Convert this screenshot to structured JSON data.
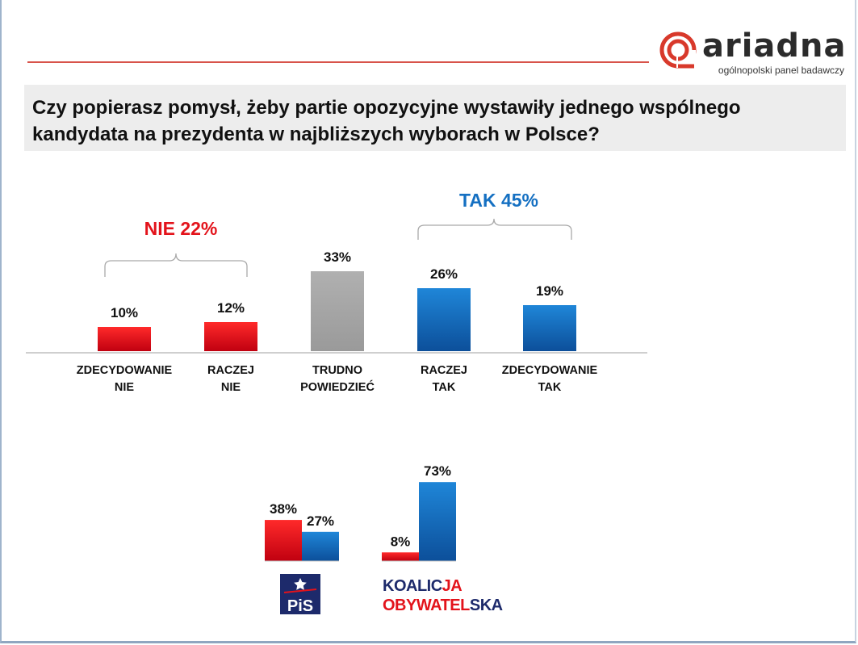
{
  "logo": {
    "brand": "ariadna",
    "tagline": "ogólnopolski panel badawczy"
  },
  "question": "Czy popierasz pomysł, żeby partie opozycyjne wystawiły jednego wspólnego kandydata na prezydenta w najbliższych wyborach w Polsce?",
  "groups": {
    "nie": {
      "label": "NIE 22%",
      "color": "#e3131b"
    },
    "tak": {
      "label": "TAK 45%",
      "color": "#1570c2"
    }
  },
  "parties": {
    "pis": {
      "logo_text": "PiS"
    },
    "ko": {
      "line1_a": "KOALIC",
      "line1_b": "JA",
      "line2_a": "OBYWATEL",
      "line2_b": "SKA"
    }
  },
  "colors": {
    "red": "#e3131b",
    "blue": "#1570c2",
    "gray": "#a6a6a6",
    "navy": "#1d2a6b"
  },
  "chart_data": [
    {
      "type": "bar",
      "categories": [
        [
          "ZDECYDOWANIE",
          "NIE"
        ],
        [
          "RACZEJ",
          "NIE"
        ],
        [
          "TRUDNO",
          "POWIEDZIEĆ"
        ],
        [
          "RACZEJ",
          "TAK"
        ],
        [
          "ZDECYDOWANIE",
          "TAK"
        ]
      ],
      "values": [
        10,
        12,
        33,
        26,
        19
      ],
      "value_labels": [
        "10%",
        "12%",
        "33%",
        "26%",
        "19%"
      ],
      "bar_colors": [
        "red",
        "red",
        "gray",
        "blue",
        "blue"
      ],
      "unit": "%"
    },
    {
      "type": "bar",
      "categories": [
        "PiS",
        "KOALICJA OBYWATELSKA"
      ],
      "series": [
        {
          "color": "red",
          "values": [
            38,
            8
          ],
          "value_labels": [
            "38%",
            "8%"
          ]
        },
        {
          "color": "blue",
          "values": [
            27,
            73
          ],
          "value_labels": [
            "27%",
            "73%"
          ]
        }
      ],
      "unit": "%"
    }
  ]
}
